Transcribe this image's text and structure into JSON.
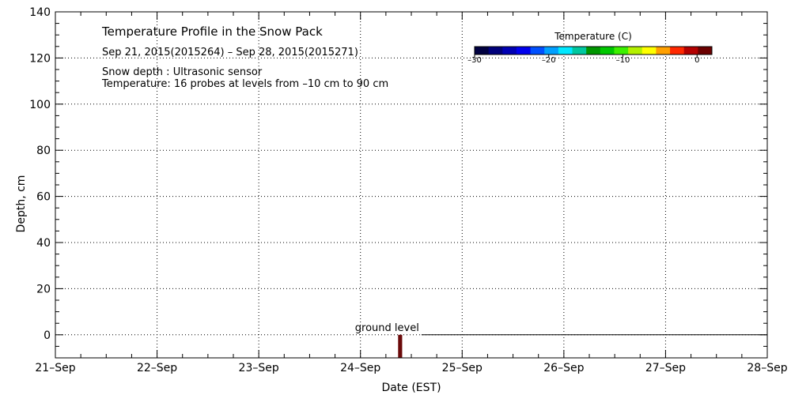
{
  "chart_data": {
    "type": "heatmap",
    "title": "Temperature Profile in the Snow Pack",
    "subtitle": "Sep 21, 2015(2015264) – Sep 28, 2015(2015271)",
    "info_lines": [
      "Snow depth : Ultrasonic sensor",
      "Temperature: 16 probes at levels from –10 cm to 90 cm"
    ],
    "xlabel": "Date (EST)",
    "ylabel": "Depth, cm",
    "x_ticks": [
      "21–Sep",
      "22–Sep",
      "23–Sep",
      "24–Sep",
      "25–Sep",
      "26–Sep",
      "27–Sep",
      "28–Sep"
    ],
    "xlim_days": [
      0,
      7
    ],
    "ylim": [
      -10,
      140
    ],
    "y_ticks": [
      0,
      20,
      40,
      60,
      80,
      100,
      120,
      140
    ],
    "grid": true,
    "ground_level": {
      "label": "ground level",
      "depth": 0,
      "x_start_day": 3.6,
      "x_end_day": 7
    },
    "data_segments": [
      {
        "x_day": 3.37,
        "width_days": 0.04,
        "depth_from": -10,
        "depth_to": 0,
        "color": "#6b0a0a"
      }
    ],
    "colorbar": {
      "title": "Temperature (C)",
      "min": -30,
      "max": 2,
      "tick_labels": [
        "–30",
        "–20",
        "–10",
        "0"
      ],
      "tick_values": [
        -30,
        -20,
        -10,
        0
      ],
      "colors": [
        "#000040",
        "#00007a",
        "#0000b4",
        "#0000ee",
        "#0050ff",
        "#00a0ff",
        "#00e8ff",
        "#00c8a0",
        "#009600",
        "#00c800",
        "#3cf000",
        "#b4f000",
        "#ffff00",
        "#ffa000",
        "#ff2800",
        "#b40000",
        "#6b0000"
      ]
    }
  }
}
